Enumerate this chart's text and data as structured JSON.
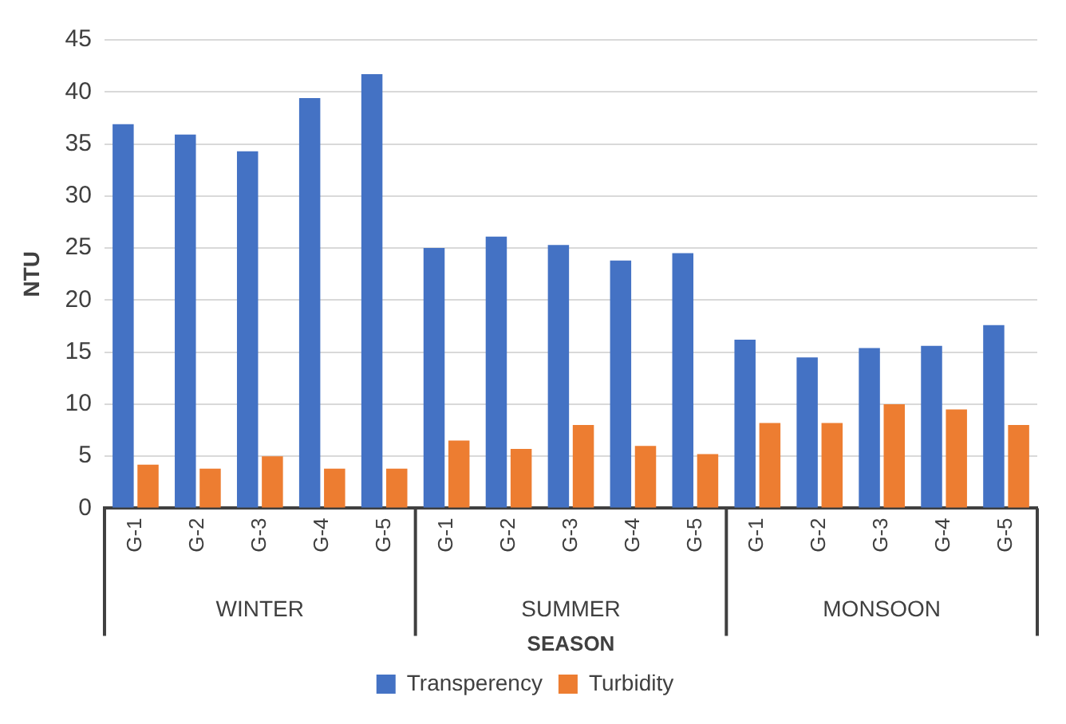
{
  "chart_data": {
    "type": "bar",
    "xlabel": "SEASON",
    "ylabel": "NTU",
    "categories": [
      "G-1",
      "G-2",
      "G-3",
      "G-4",
      "G-5",
      "G-1",
      "G-2",
      "G-3",
      "G-4",
      "G-5",
      "G-1",
      "G-2",
      "G-3",
      "G-4",
      "G-5"
    ],
    "annotations": [
      "WINTER",
      "SUMMER",
      "MONSOON"
    ],
    "series": [
      {
        "name": "Transperency",
        "color": "#4472c4",
        "values": [
          36.9,
          35.9,
          34.3,
          39.4,
          41.7,
          25.0,
          26.1,
          25.3,
          23.8,
          24.5,
          16.2,
          14.5,
          15.4,
          15.6,
          17.6
        ]
      },
      {
        "name": "Turbidity",
        "color": "#ed7d31",
        "values": [
          4.2,
          3.8,
          5.0,
          3.8,
          3.8,
          6.5,
          5.7,
          8.0,
          6.0,
          5.2,
          8.2,
          8.2,
          10.0,
          9.5,
          8.0
        ]
      }
    ],
    "ylim": [
      0,
      45
    ],
    "yticks": [
      0,
      5,
      10,
      15,
      20,
      25,
      30,
      35,
      40,
      45
    ],
    "grid": "y",
    "legend": "bottom"
  }
}
